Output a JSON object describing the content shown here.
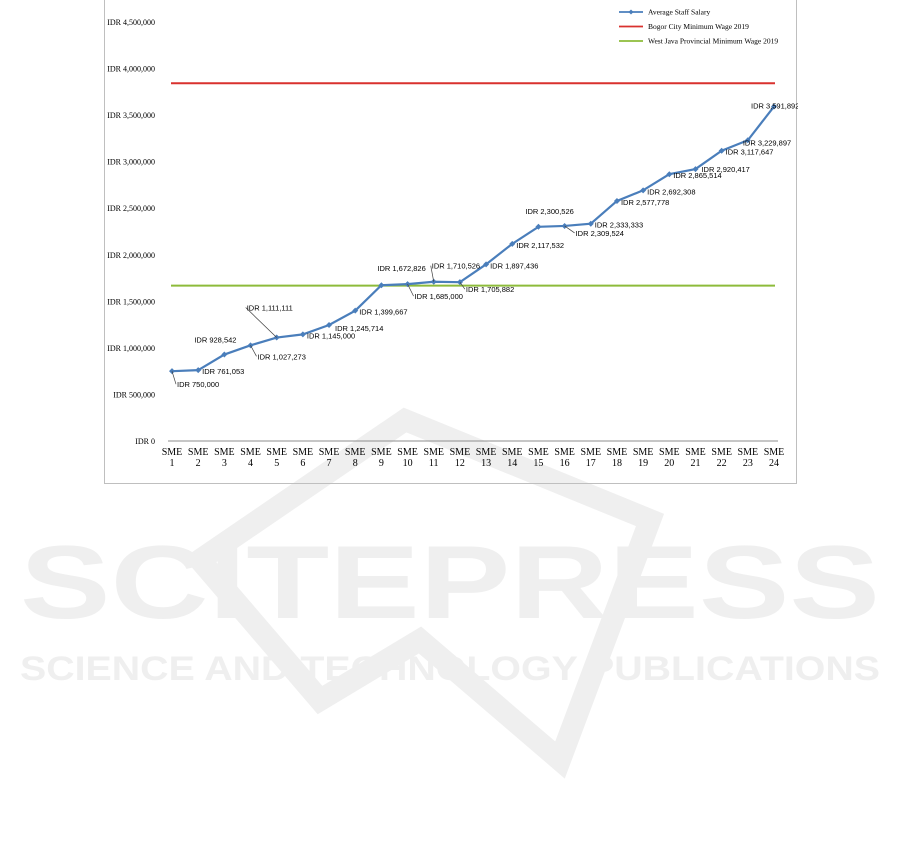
{
  "chart_data": {
    "type": "line",
    "title": "",
    "xlabel": "",
    "ylabel": "",
    "categories": [
      "SME 1",
      "SME 2",
      "SME 3",
      "SME 4",
      "SME 5",
      "SME 6",
      "SME 7",
      "SME 8",
      "SME 9",
      "SME 10",
      "SME 11",
      "SME 12",
      "SME 13",
      "SME 14",
      "SME 15",
      "SME 16",
      "SME 17",
      "SME 18",
      "SME 19",
      "SME 20",
      "SME 21",
      "SME 22",
      "SME 23",
      "SME 24"
    ],
    "ylim": [
      0,
      4500000
    ],
    "y_ticks": [
      {
        "value": 0,
        "label": "IDR 0"
      },
      {
        "value": 500000,
        "label": "IDR 500,000"
      },
      {
        "value": 1000000,
        "label": "IDR 1,000,000"
      },
      {
        "value": 1500000,
        "label": "IDR 1,500,000"
      },
      {
        "value": 2000000,
        "label": "IDR 2,000,000"
      },
      {
        "value": 2500000,
        "label": "IDR 2,500,000"
      },
      {
        "value": 3000000,
        "label": "IDR 3,000,000"
      },
      {
        "value": 3500000,
        "label": "IDR 3,500,000"
      },
      {
        "value": 4000000,
        "label": "IDR 4,000,000"
      },
      {
        "value": 4500000,
        "label": "IDR 4,500,000"
      }
    ],
    "grid": false,
    "legend_position": "top-right",
    "series": [
      {
        "name": "Average Staff Salary",
        "color": "#4a7ebb",
        "marker": "diamond",
        "values": [
          750000,
          761053,
          928542,
          1027273,
          1111111,
          1145000,
          1245714,
          1399667,
          1672826,
          1685000,
          1710526,
          1705882,
          1897436,
          2117532,
          2300526,
          2309524,
          2333333,
          2577778,
          2692308,
          2865514,
          2920417,
          3117647,
          3229897,
          3591892
        ],
        "labels": [
          "IDR 750,000",
          "IDR 761,053",
          "IDR 928,542",
          "IDR 1,027,273",
          "IDR 1,111,111",
          "IDR 1,145,000",
          "IDR 1,245,714",
          "IDR 1,399,667",
          "IDR 1,672,826",
          "IDR 1,685,000",
          "IDR 1,710,526",
          "IDR 1,705,882",
          "IDR 1,897,436",
          "IDR 2,117,532",
          "IDR 2,300,526",
          "IDR 2,309,524",
          "IDR 2,333,333",
          "IDR 2,577,778",
          "IDR 2,692,308",
          "IDR 2,865,514",
          "IDR 2,920,417",
          "IDR 3,117,647",
          "IDR 3,229,897",
          "IDR 3,591,892"
        ]
      },
      {
        "name": "Bogor City Minimum Wage 2019",
        "color": "#d9312e",
        "constant": 3842785
      },
      {
        "name": "West Java Provincial Minimum Wage 2019",
        "color": "#8dbb3a",
        "constant": 1668373
      }
    ]
  },
  "watermark": {
    "line1": "SCITEPRESS",
    "line2": "SCIENCE AND TECHNOLOGY PUBLICATIONS",
    "color": "#efefef"
  }
}
